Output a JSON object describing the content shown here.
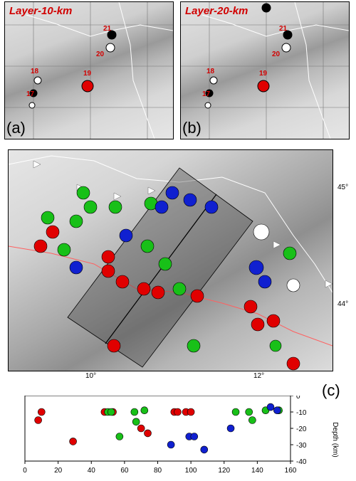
{
  "panel_a": {
    "title": "Layer-10-km",
    "label": "(a)",
    "events": [
      "21",
      "20",
      "18",
      "17",
      "19"
    ]
  },
  "panel_b": {
    "title": "Layer-20-km",
    "label": "(b)",
    "events": [
      "21",
      "20",
      "18",
      "17",
      "19"
    ]
  },
  "map": {
    "lat_labels": [
      "45°",
      "44°"
    ],
    "lon_labels": [
      "10°",
      "12°"
    ]
  },
  "section": {
    "label": "(c)",
    "x_ticks": [
      "0",
      "20",
      "40",
      "60",
      "80",
      "100",
      "120",
      "140",
      "160"
    ],
    "y_ticks": [
      "0",
      "-10",
      "-20",
      "-30",
      "-40"
    ],
    "ylabel": "Depth (km)"
  },
  "colors": {
    "red": "#e00000",
    "green": "#18c018",
    "blue": "#1020d0",
    "black": "#000000"
  },
  "chart_data": {
    "type": "scatter",
    "xlim": [
      0,
      160
    ],
    "ylim": [
      -40,
      0
    ],
    "ylabel": "Depth (km)",
    "series": [
      {
        "values": [
          [
            8,
            -15
          ],
          [
            10,
            -10
          ],
          [
            29,
            -28
          ],
          [
            48,
            -10
          ],
          [
            53,
            -10
          ],
          [
            70,
            -20
          ],
          [
            74,
            -23
          ],
          [
            90,
            -10
          ],
          [
            92,
            -10
          ],
          [
            97,
            -10
          ],
          [
            100,
            -10
          ]
        ]
      },
      {
        "values": [
          [
            50,
            -10
          ],
          [
            52,
            -10
          ],
          [
            57,
            -25
          ],
          [
            66,
            -10
          ],
          [
            67,
            -16
          ],
          [
            72,
            -9
          ],
          [
            127,
            -10
          ],
          [
            135,
            -10
          ],
          [
            137,
            -15
          ],
          [
            145,
            -9
          ],
          [
            153,
            -9
          ]
        ]
      },
      {
        "values": [
          [
            88,
            -30
          ],
          [
            99,
            -25
          ],
          [
            102,
            -25
          ],
          [
            108,
            -33
          ],
          [
            124,
            -20
          ],
          [
            148,
            -7
          ],
          [
            152,
            -9
          ]
        ]
      }
    ]
  }
}
